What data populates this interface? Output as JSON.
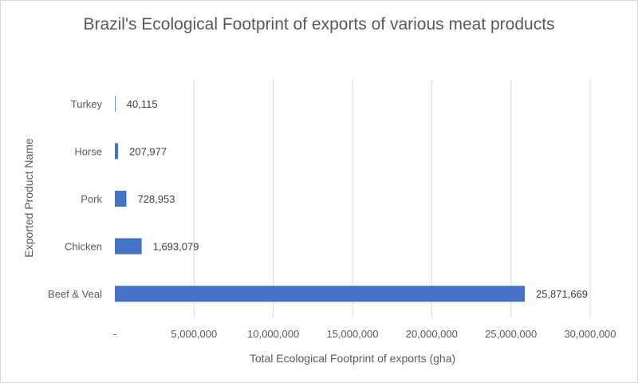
{
  "chart_data": {
    "type": "bar",
    "orientation": "horizontal",
    "title": "Brazil's Ecological Footprint of exports of various meat products",
    "xlabel": "Total Ecological Footprint of exports (gha)",
    "ylabel": "Exported Product Name",
    "categories": [
      "Turkey",
      "Horse",
      "Pork",
      "Chicken",
      "Beef & Veal"
    ],
    "values": [
      40115,
      207977,
      728953,
      1693079,
      25871669
    ],
    "value_labels": [
      "40,115",
      "207,977",
      "728,953",
      "1,693,079",
      "25,871,669"
    ],
    "xlim": [
      0,
      30000000
    ],
    "xticks": [
      0,
      5000000,
      10000000,
      15000000,
      20000000,
      25000000,
      30000000
    ],
    "xtick_labels": [
      "-",
      "5,000,000",
      "10,000,000",
      "15,000,000",
      "20,000,000",
      "25,000,000",
      "30,000,000"
    ],
    "grid": true,
    "legend": "none",
    "bar_color": "#4472c4"
  }
}
